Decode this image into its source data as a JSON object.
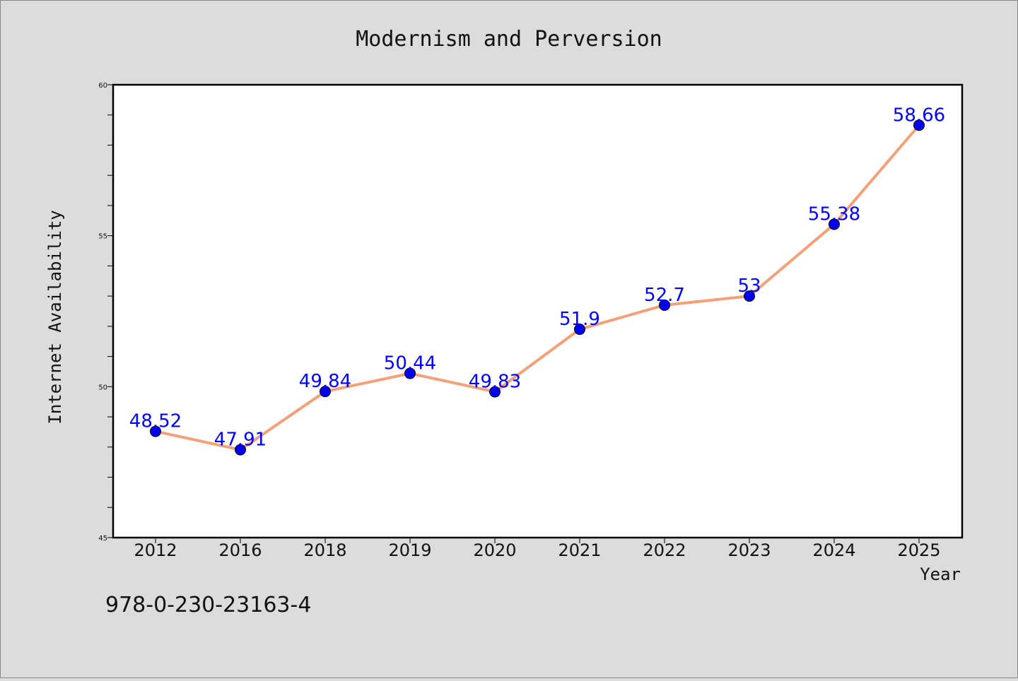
{
  "chart_data": {
    "type": "line",
    "title": "Modernism and Perversion",
    "xlabel": "Year",
    "ylabel": "Internet Availability",
    "categories": [
      "2012",
      "2016",
      "2018",
      "2019",
      "2020",
      "2021",
      "2022",
      "2023",
      "2024",
      "2025"
    ],
    "values": [
      48.52,
      47.91,
      49.84,
      50.44,
      49.83,
      51.9,
      52.7,
      53,
      55.38,
      58.66
    ],
    "data_labels": [
      "48.52",
      "47.91",
      "49.84",
      "50.44",
      "49.83",
      "51.9",
      "52.7",
      "53",
      "55.38",
      "58.66"
    ],
    "ylim": [
      45,
      60
    ],
    "yticks": [
      "45",
      "50",
      "55",
      "60"
    ],
    "grid": false,
    "line_color": "#f4a07a",
    "marker_color": "#0000ee",
    "label_color": "#0000ff"
  },
  "footnote": "978-0-230-23163-4"
}
